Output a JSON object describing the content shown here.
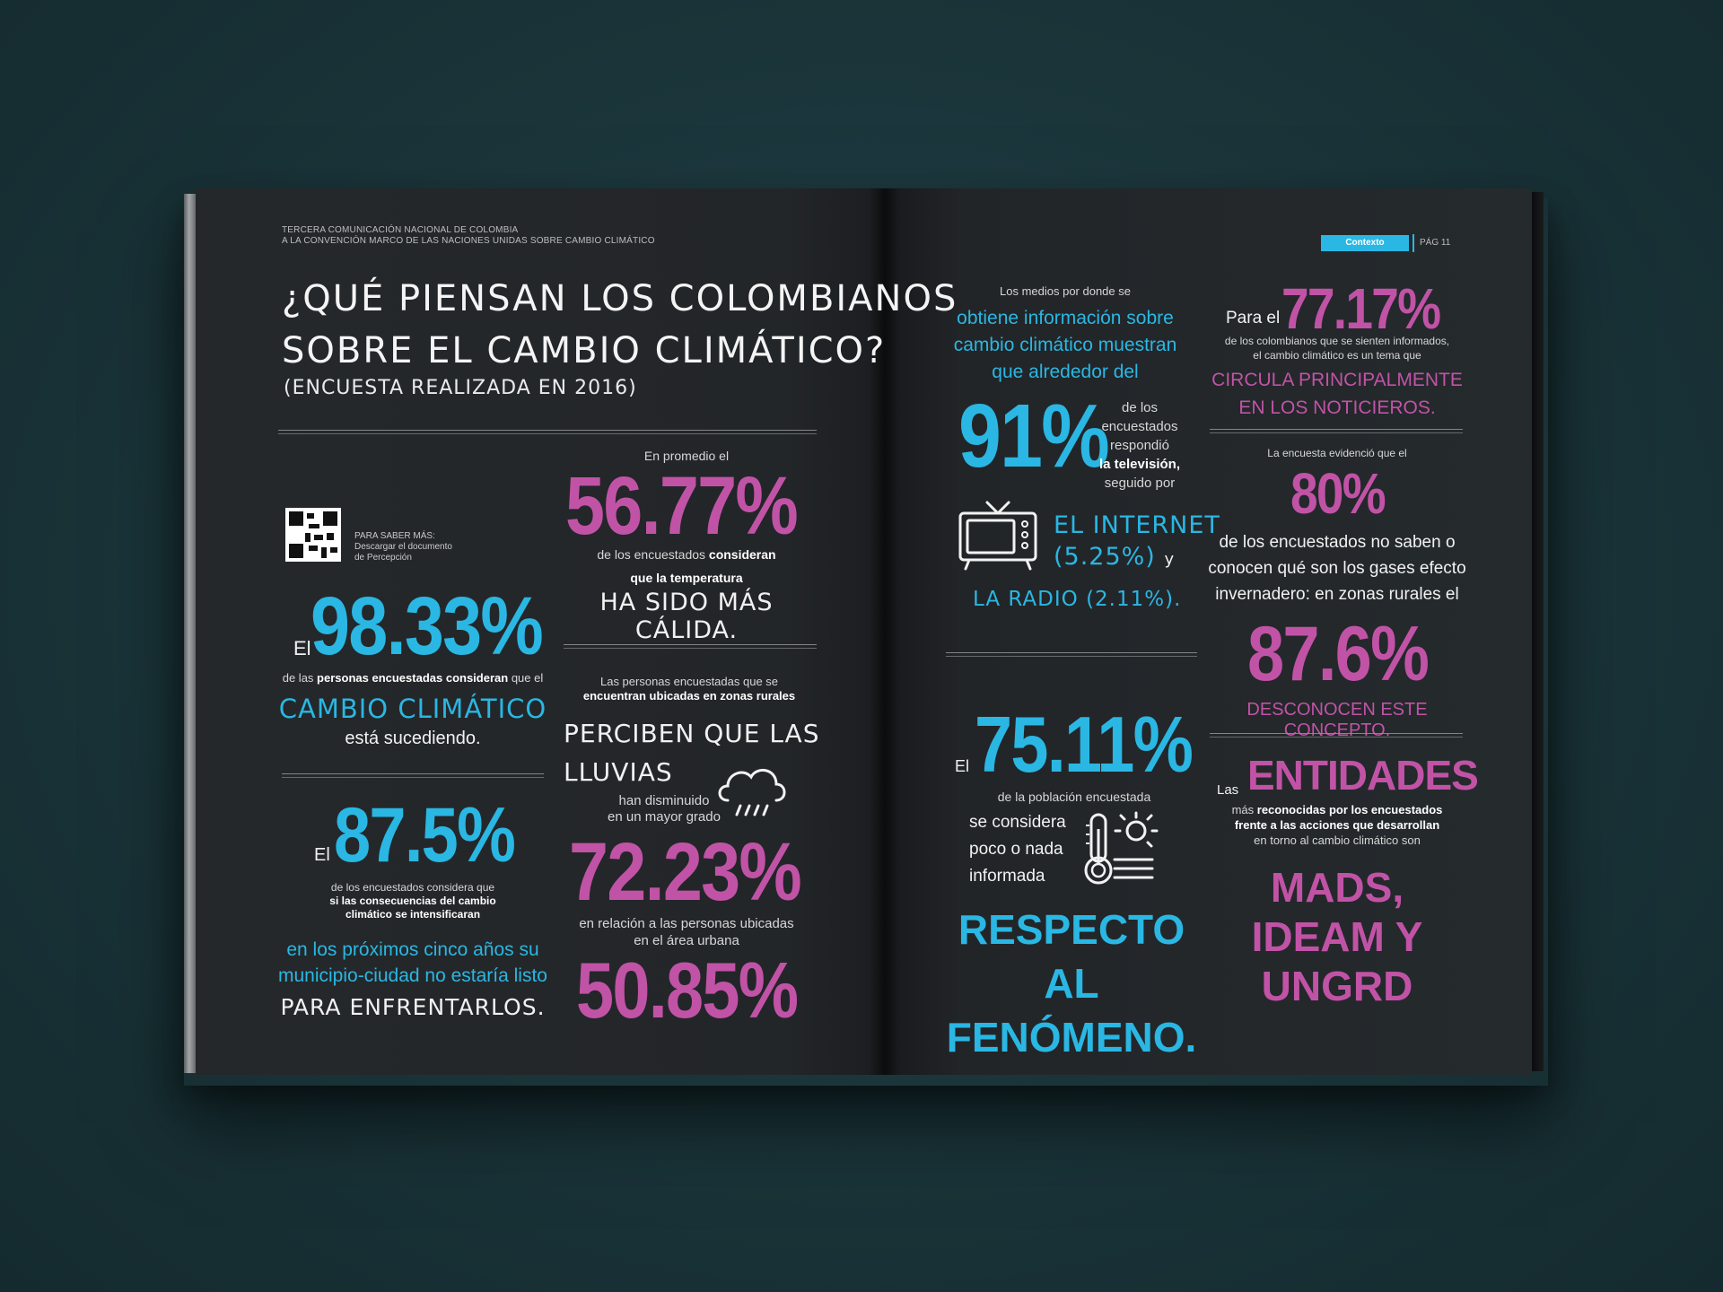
{
  "left_page": {
    "running_header": [
      "TERCERA COMUNICACIÓN NACIONAL DE COLOMBIA",
      "A LA CONVENCIÓN MARCO DE LAS NACIONES UNIDAS SOBRE CAMBIO CLIMÁTICO"
    ],
    "title_line1": "¿QUÉ PIENSAN LOS COLOMBIANOS",
    "title_line2": "SOBRE EL CAMBIO CLIMÁTICO?",
    "subtitle": "(ENCUESTA REALIZADA EN 2016)",
    "qr_note": [
      "PARA SABER MÁS:",
      "Descargar el documento",
      "de Percepción"
    ],
    "stat_5677": {
      "intro": "En promedio el",
      "value": "56.77%",
      "line1_a": "de los encuestados ",
      "line1_b": "consideran",
      "line2": "que la temperatura",
      "closing": "HA SIDO MÁS CÁLIDA."
    },
    "stat_9833": {
      "prefix": "El",
      "value": "98.33%",
      "line_a": "de las ",
      "line_b": "personas encuestadas consideran",
      "line_c": " que el",
      "highlight": "CAMBIO CLIMÁTICO",
      "closing": "está sucediendo."
    },
    "stat_rural": {
      "line1": "Las personas encuestadas que se",
      "line2": "encuentran ubicadas en zonas rurales",
      "claim1": "PERCIBEN QUE LAS",
      "claim2": "LLUVIAS",
      "detail1": "han disminuido",
      "detail2": "en un mayor grado",
      "value": "72.23%",
      "compare1": "en relación a las personas ubicadas",
      "compare2": "en el área urbana",
      "value2": "50.85%"
    },
    "stat_875": {
      "prefix": "El",
      "value": "87.5%",
      "line1": "de los encuestados considera que",
      "line2": "si las consecuencias del cambio",
      "line3": "climático se intensificaran",
      "highlight1": "en los próximos cinco años su",
      "highlight2": "municipio-ciudad no estaría listo",
      "closing": "PARA ENFRENTARLOS."
    }
  },
  "right_page": {
    "tab_label": "Contexto",
    "page_number": "PÁG 11",
    "media": {
      "intro": "Los medios por donde se",
      "hl1": "obtiene información sobre",
      "hl2": "cambio climático muestran",
      "hl3": "que alrededor del",
      "value": "91%",
      "side1": "de los",
      "side2": "encuestados",
      "side3": "respondió",
      "side4": "la televisión,",
      "side5": "seguido por",
      "internet1": "EL INTERNET",
      "internet2": "(5.25%)",
      "conj": "y",
      "radio": "LA RADIO (2.11%)."
    },
    "stat_7717": {
      "prefix": "Para el",
      "value": "77.17%",
      "line1": "de los colombianos que se sienten informados,",
      "line2": "el cambio climático es un tema que",
      "hl1": "CIRCULA PRINCIPALMENTE",
      "hl2": "EN LOS NOTICIEROS."
    },
    "stat_80": {
      "intro": "La encuesta evidenció que el",
      "value": "80%",
      "line1": "de los encuestados no saben o",
      "line2": "conocen qué son los gases efecto",
      "line3": "invernadero: en zonas rurales el",
      "value2": "87.6%",
      "closing": "DESCONOCEN ESTE CONCEPTO."
    },
    "stat_7511": {
      "prefix": "El",
      "value": "75.11%",
      "line1": "de la población encuestada",
      "side1": "se considera",
      "side2": "poco o nada",
      "side3": "informada",
      "closing1": "RESPECTO AL",
      "closing2": "FENÓMENO."
    },
    "entidades": {
      "prefix": "Las",
      "heading": "ENTIDADES",
      "line1_a": "más ",
      "line1_b": "reconocidas por los encuestados",
      "line2": "frente a las acciones que desarrollan",
      "line3": "en torno al cambio climático son",
      "list1": "MADS,",
      "list2": "IDEAM Y",
      "list3": "UNGRD"
    }
  },
  "icons": [
    "qr-code-icon",
    "rain-cloud-icon",
    "television-icon",
    "thermometer-sun-icon"
  ],
  "colors": {
    "cyan": "#2ab7e3",
    "magenta": "#c153a6",
    "page": "#232629",
    "background": "#1a3439"
  }
}
